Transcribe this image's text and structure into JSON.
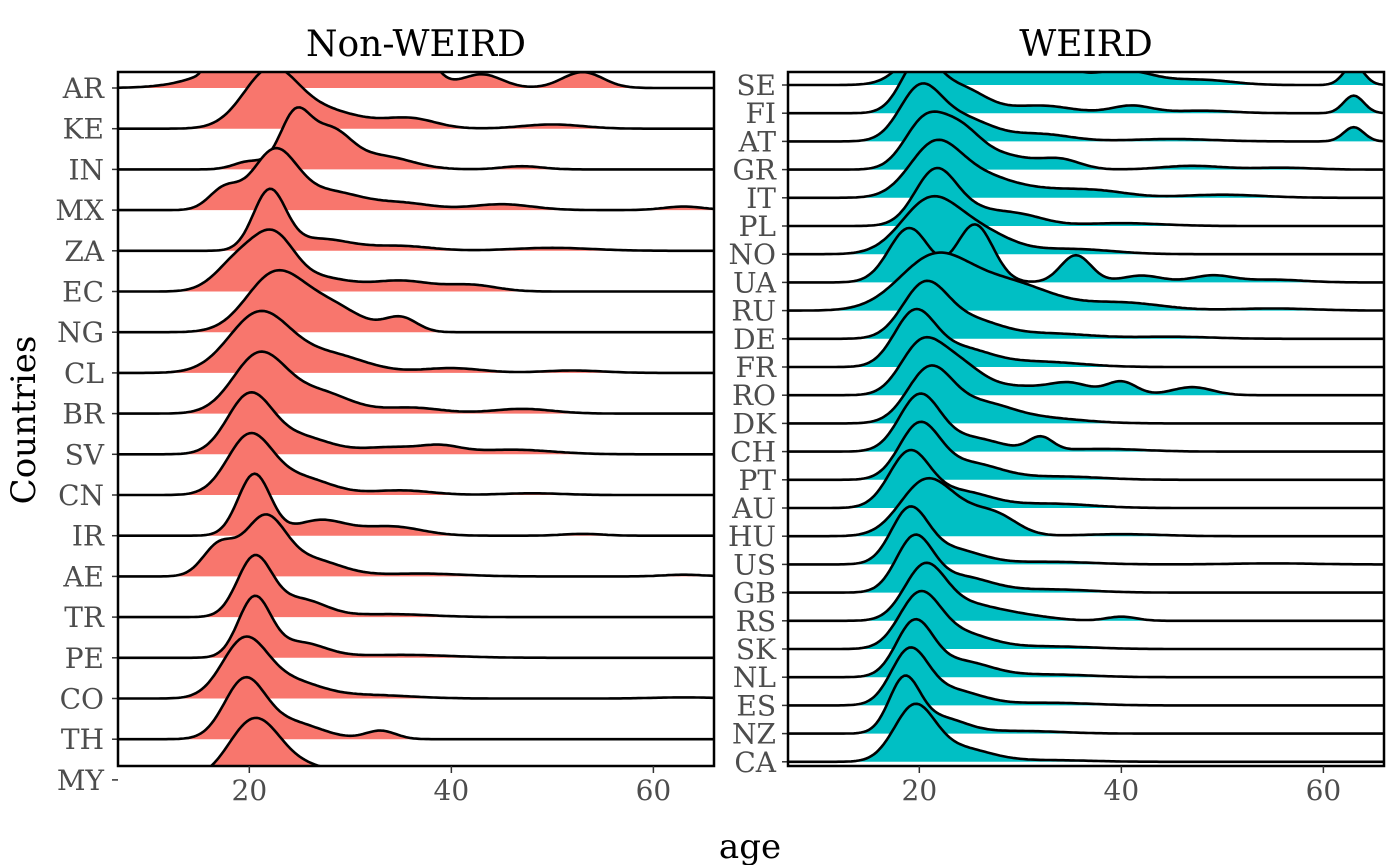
{
  "chart_data": {
    "type": "ridgeline",
    "xlabel": "age",
    "ylabel": "Countries",
    "xlim": [
      7,
      66
    ],
    "x_ticks": [
      20,
      40,
      60
    ],
    "grid": false,
    "panels": [
      {
        "title": "Non-WEIRD",
        "color": "#F8766D",
        "countries": [
          "AR",
          "KE",
          "IN",
          "MX",
          "ZA",
          "EC",
          "NG",
          "CL",
          "BR",
          "SV",
          "CN",
          "IR",
          "AE",
          "TR",
          "PE",
          "CO",
          "TH",
          "MY"
        ],
        "densities": {
          "AR": [
            [
              16.5,
              0.8,
              0.6
            ],
            [
              23,
              1.0,
              5
            ],
            [
              29,
              0.7,
              4
            ],
            [
              36.5,
              0.9,
              1.6
            ],
            [
              43,
              0.3,
              2
            ],
            [
              53,
              0.35,
              2
            ]
          ],
          "KE": [
            [
              22,
              1.0,
              2.6
            ],
            [
              27,
              0.35,
              4
            ],
            [
              36,
              0.18,
              2.5
            ],
            [
              50,
              0.08,
              3
            ]
          ],
          "IN": [
            [
              20,
              0.15,
              1.5
            ],
            [
              24.5,
              1.0,
              1.5
            ],
            [
              28,
              0.7,
              2
            ],
            [
              33,
              0.25,
              3
            ],
            [
              47,
              0.06,
              2
            ]
          ],
          "MX": [
            [
              17.5,
              0.35,
              1.5
            ],
            [
              22.5,
              1.0,
              2.2
            ],
            [
              28,
              0.3,
              3
            ],
            [
              35,
              0.12,
              3
            ],
            [
              45,
              0.1,
              3
            ],
            [
              63,
              0.06,
              2
            ]
          ],
          "ZA": [
            [
              22,
              1.0,
              1.6
            ],
            [
              27,
              0.2,
              3
            ],
            [
              35,
              0.08,
              3
            ],
            [
              50,
              0.05,
              4
            ]
          ],
          "EC": [
            [
              19,
              0.6,
              2.2
            ],
            [
              22.5,
              0.9,
              2
            ],
            [
              27,
              0.25,
              3
            ],
            [
              35,
              0.2,
              3
            ],
            [
              42,
              0.12,
              2.5
            ]
          ],
          "NG": [
            [
              22.5,
              1.0,
              2.8
            ],
            [
              28,
              0.45,
              3
            ],
            [
              35,
              0.25,
              1.6
            ]
          ],
          "CL": [
            [
              21,
              1.0,
              3
            ],
            [
              28,
              0.3,
              3.5
            ],
            [
              40,
              0.08,
              3
            ],
            [
              52,
              0.04,
              3
            ]
          ],
          "BR": [
            [
              21,
              1.0,
              2.6
            ],
            [
              27,
              0.35,
              3
            ],
            [
              36,
              0.1,
              3
            ],
            [
              47,
              0.08,
              3
            ]
          ],
          "SV": [
            [
              20,
              1.0,
              2.2
            ],
            [
              25,
              0.3,
              3
            ],
            [
              34,
              0.12,
              3
            ],
            [
              39,
              0.12,
              2
            ],
            [
              46,
              0.08,
              4
            ]
          ],
          "CN": [
            [
              20,
              1.0,
              2.2
            ],
            [
              25,
              0.3,
              3
            ],
            [
              35,
              0.08,
              3
            ],
            [
              48,
              0.03,
              3
            ]
          ],
          "IR": [
            [
              20.5,
              1.0,
              1.6
            ],
            [
              27,
              0.25,
              2.5
            ],
            [
              34,
              0.15,
              3
            ],
            [
              53,
              0.03,
              2
            ]
          ],
          "AE": [
            [
              17,
              0.55,
              1.6
            ],
            [
              21.5,
              1.0,
              2
            ],
            [
              26,
              0.3,
              3
            ],
            [
              37,
              0.05,
              4
            ],
            [
              63,
              0.03,
              2
            ]
          ],
          "TR": [
            [
              20.5,
              1.0,
              1.7
            ],
            [
              25,
              0.3,
              2.5
            ],
            [
              34,
              0.05,
              4
            ]
          ],
          "PE": [
            [
              20.5,
              1.0,
              1.6
            ],
            [
              25,
              0.25,
              2.5
            ],
            [
              35,
              0.05,
              5
            ]
          ],
          "CO": [
            [
              19.5,
              1.0,
              2.2
            ],
            [
              24,
              0.3,
              3
            ],
            [
              32,
              0.06,
              4
            ],
            [
              63,
              0.02,
              3
            ]
          ],
          "TH": [
            [
              19.5,
              1.0,
              2
            ],
            [
              24,
              0.3,
              3
            ],
            [
              33,
              0.15,
              1.5
            ]
          ],
          "MY": [
            [
              20.5,
              1.0,
              2.5
            ],
            [
              26,
              0.2,
              3
            ],
            [
              35,
              0.03,
              4
            ]
          ]
        }
      },
      {
        "title": "WEIRD",
        "color": "#00BFC4",
        "countries": [
          "SE",
          "FI",
          "AT",
          "GR",
          "IT",
          "PL",
          "NO",
          "UA",
          "RU",
          "DE",
          "FR",
          "RO",
          "DK",
          "CH",
          "PT",
          "AU",
          "HU",
          "US",
          "GB",
          "RS",
          "SK",
          "NL",
          "ES",
          "NZ",
          "CA"
        ],
        "densities": {
          "SE": [
            [
              21.5,
              1.0,
              2.5
            ],
            [
              27,
              0.7,
              3
            ],
            [
              33,
              0.45,
              2
            ],
            [
              40,
              0.3,
              3
            ],
            [
              48,
              0.1,
              3
            ],
            [
              63,
              0.4,
              1
            ]
          ],
          "FI": [
            [
              20,
              1.0,
              1.8
            ],
            [
              24,
              0.5,
              2.5
            ],
            [
              32,
              0.15,
              3
            ],
            [
              41,
              0.15,
              2
            ],
            [
              48,
              0.05,
              3
            ],
            [
              63,
              0.35,
              1
            ]
          ],
          "AT": [
            [
              20,
              1.0,
              2
            ],
            [
              24,
              0.5,
              3
            ],
            [
              32,
              0.15,
              3
            ],
            [
              45,
              0.05,
              4
            ],
            [
              63,
              0.3,
              1
            ]
          ],
          "GR": [
            [
              20.5,
              1.0,
              2
            ],
            [
              24,
              0.7,
              2
            ],
            [
              28,
              0.3,
              3
            ],
            [
              34,
              0.2,
              2
            ],
            [
              47,
              0.08,
              3
            ],
            [
              56,
              0.04,
              3
            ]
          ],
          "IT": [
            [
              21.5,
              1.0,
              2.5
            ],
            [
              26,
              0.35,
              3
            ],
            [
              32,
              0.15,
              4
            ],
            [
              38,
              0.1,
              3
            ],
            [
              50,
              0.06,
              4
            ]
          ],
          "PL": [
            [
              21.5,
              1.0,
              2
            ],
            [
              24.5,
              0.35,
              3
            ],
            [
              30,
              0.2,
              2.5
            ],
            [
              40,
              0.06,
              4
            ]
          ],
          "NO": [
            [
              21,
              1.0,
              2.8
            ],
            [
              26,
              0.4,
              3
            ],
            [
              35,
              0.1,
              4
            ]
          ],
          "UA": [
            [
              19,
              0.8,
              2
            ],
            [
              25.5,
              0.85,
              1.8
            ],
            [
              35.5,
              0.4,
              1.5
            ],
            [
              42,
              0.1,
              2
            ],
            [
              49,
              0.1,
              2
            ],
            [
              55,
              0.04,
              3
            ]
          ],
          "RU": [
            [
              21.5,
              1.0,
              3.5
            ],
            [
              29,
              0.5,
              4
            ],
            [
              40,
              0.15,
              4
            ],
            [
              55,
              0.04,
              4
            ]
          ],
          "DE": [
            [
              20.5,
              1.0,
              2.2
            ],
            [
              25,
              0.35,
              3
            ],
            [
              33,
              0.1,
              4
            ],
            [
              45,
              0.04,
              4
            ]
          ],
          "FR": [
            [
              19.5,
              1.0,
              2
            ],
            [
              24,
              0.35,
              3
            ],
            [
              32,
              0.1,
              4
            ]
          ],
          "RO": [
            [
              20,
              0.8,
              2
            ],
            [
              23.5,
              0.6,
              2.5
            ],
            [
              30,
              0.15,
              3
            ],
            [
              35,
              0.2,
              2
            ],
            [
              40,
              0.25,
              1.5
            ],
            [
              47,
              0.15,
              2
            ]
          ],
          "DK": [
            [
              21,
              1.0,
              2.2
            ],
            [
              26,
              0.35,
              3
            ],
            [
              32,
              0.1,
              4
            ]
          ],
          "CH": [
            [
              20,
              1.0,
              2
            ],
            [
              25,
              0.25,
              3
            ],
            [
              32,
              0.25,
              1.2
            ],
            [
              38,
              0.05,
              4
            ]
          ],
          "PT": [
            [
              20,
              1.0,
              2
            ],
            [
              25,
              0.3,
              3
            ],
            [
              34,
              0.06,
              4
            ]
          ],
          "AU": [
            [
              19,
              1.0,
              2
            ],
            [
              24,
              0.3,
              3
            ],
            [
              33,
              0.08,
              4
            ]
          ],
          "HU": [
            [
              20.5,
              1.0,
              2.5
            ],
            [
              25,
              0.4,
              3
            ],
            [
              28,
              0.2,
              2
            ],
            [
              40,
              0.04,
              4
            ]
          ],
          "US": [
            [
              19,
              1.0,
              1.8
            ],
            [
              23,
              0.3,
              3
            ],
            [
              33,
              0.05,
              4
            ],
            [
              55,
              0.02,
              4
            ]
          ],
          "GB": [
            [
              19.5,
              1.0,
              1.8
            ],
            [
              24,
              0.3,
              3
            ],
            [
              33,
              0.06,
              4
            ]
          ],
          "RS": [
            [
              20.5,
              1.0,
              2
            ],
            [
              24.5,
              0.3,
              3
            ],
            [
              30,
              0.1,
              3
            ],
            [
              40,
              0.08,
              1.5
            ]
          ],
          "SK": [
            [
              20,
              1.0,
              2
            ],
            [
              24,
              0.3,
              3
            ],
            [
              33,
              0.05,
              4
            ]
          ],
          "NL": [
            [
              19.5,
              1.0,
              1.8
            ],
            [
              24,
              0.3,
              3
            ],
            [
              33,
              0.05,
              4
            ]
          ],
          "ES": [
            [
              19,
              1.0,
              1.8
            ],
            [
              23,
              0.3,
              3
            ],
            [
              33,
              0.05,
              4
            ]
          ],
          "NZ": [
            [
              18.5,
              1.0,
              1.5
            ],
            [
              22,
              0.3,
              2.5
            ],
            [
              30,
              0.05,
              4
            ]
          ],
          "CA": [
            [
              19.5,
              1.0,
              2
            ],
            [
              24,
              0.25,
              3
            ],
            [
              33,
              0.03,
              4
            ]
          ]
        }
      }
    ]
  }
}
